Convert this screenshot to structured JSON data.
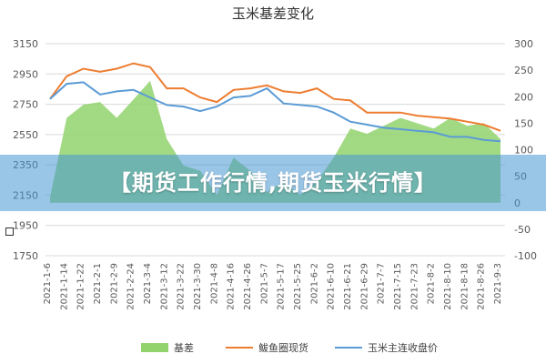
{
  "banner": {
    "text": "【期货工作行情,期货玉米行情】"
  },
  "colors": {
    "basis_fill": "#92d36e",
    "spot_line": "#ed7d31",
    "futures_line": "#5b9bd5",
    "grid": "#d9d9d9",
    "axis_text": "#595959",
    "banner_bg": "#4696d2"
  },
  "chart_data": {
    "type": "line",
    "title": "玉米基差变化",
    "left_axis": {
      "ylim": [
        1750,
        3150
      ],
      "ticks": [
        1750,
        1950,
        2150,
        2350,
        2550,
        2750,
        2950,
        3150
      ]
    },
    "right_axis": {
      "ylim": [
        -100,
        300
      ],
      "ticks": [
        -100,
        -50,
        0,
        50,
        100,
        150,
        200,
        250,
        300
      ]
    },
    "grid": true,
    "legend_position": "bottom",
    "categories": [
      "2021-1-6",
      "2021-1-14",
      "2021-1-22",
      "2021-2-1",
      "2021-2-9",
      "2021-2-24",
      "2021-3-4",
      "2021-3-12",
      "2021-3-22",
      "2021-3-30",
      "2021-4-8",
      "2021-4-16",
      "2021-4-26",
      "2021-5-7",
      "2021-5-17",
      "2021-5-25",
      "2021-6-2",
      "2021-6-10",
      "2021-6-21",
      "2021-6-29",
      "2021-7-7",
      "2021-7-15",
      "2021-7-23",
      "2021-8-2",
      "2021-8-10",
      "2021-8-18",
      "2021-8-26",
      "2021-9-3"
    ],
    "series": [
      {
        "name": "基差",
        "type": "area",
        "axis": "right",
        "values": [
          10,
          160,
          185,
          190,
          160,
          195,
          230,
          120,
          70,
          60,
          15,
          85,
          60,
          20,
          40,
          15,
          40,
          85,
          140,
          130,
          145,
          160,
          150,
          140,
          160,
          145,
          150,
          120
        ]
      },
      {
        "name": "鲅鱼圈现货",
        "type": "line",
        "axis": "left",
        "values": [
          2785,
          2935,
          2985,
          2965,
          2985,
          3020,
          2995,
          2855,
          2855,
          2795,
          2765,
          2845,
          2855,
          2875,
          2835,
          2825,
          2855,
          2785,
          2775,
          2695,
          2695,
          2695,
          2675,
          2665,
          2655,
          2635,
          2615,
          2575
        ]
      },
      {
        "name": "玉米主连收盘价",
        "type": "line",
        "axis": "left",
        "values": [
          2785,
          2885,
          2895,
          2815,
          2835,
          2845,
          2795,
          2745,
          2735,
          2705,
          2735,
          2795,
          2805,
          2855,
          2755,
          2745,
          2735,
          2695,
          2635,
          2615,
          2595,
          2585,
          2575,
          2565,
          2535,
          2535,
          2515,
          2505
        ]
      }
    ]
  }
}
